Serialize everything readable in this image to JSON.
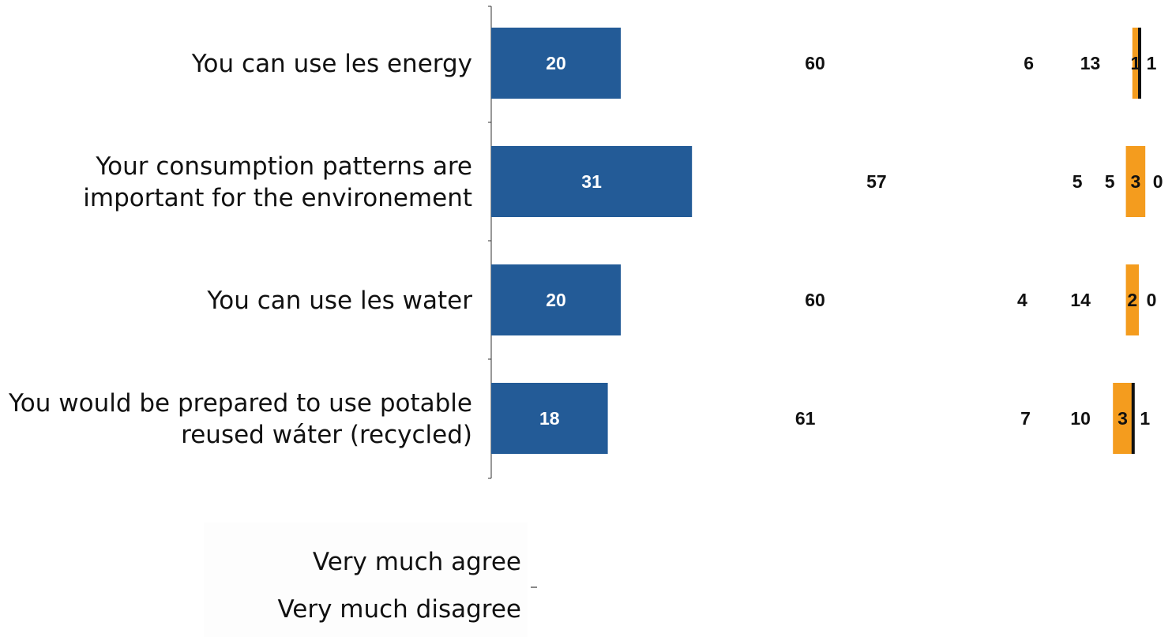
{
  "chart_data": {
    "type": "bar",
    "stacked": true,
    "orientation": "horizontal",
    "categories": [
      "You can use les energy",
      "Your consumption patterns are important for the environement",
      "You can use les water",
      "You would be prepared to use potable reused wáter (recycled)"
    ],
    "series": [
      {
        "name": "Very much agree",
        "values": [
          20,
          31,
          20,
          18
        ],
        "color": "#235b97",
        "visible": true,
        "label_inside": true
      },
      {
        "values": [
          60,
          57,
          60,
          61
        ],
        "visible": false
      },
      {
        "values": [
          6,
          5,
          4,
          7
        ],
        "visible": false
      },
      {
        "values": [
          13,
          5,
          14,
          10
        ],
        "visible": false
      },
      {
        "values": [
          1,
          3,
          2,
          3
        ],
        "color": "#f49c1e",
        "visible": true
      },
      {
        "name": "Very much disagree",
        "values": [
          1,
          0,
          0,
          1
        ],
        "color": "#111111",
        "visible": true
      }
    ],
    "xlim": [
      0,
      100
    ],
    "grid": false,
    "legend_position": "bottom"
  }
}
